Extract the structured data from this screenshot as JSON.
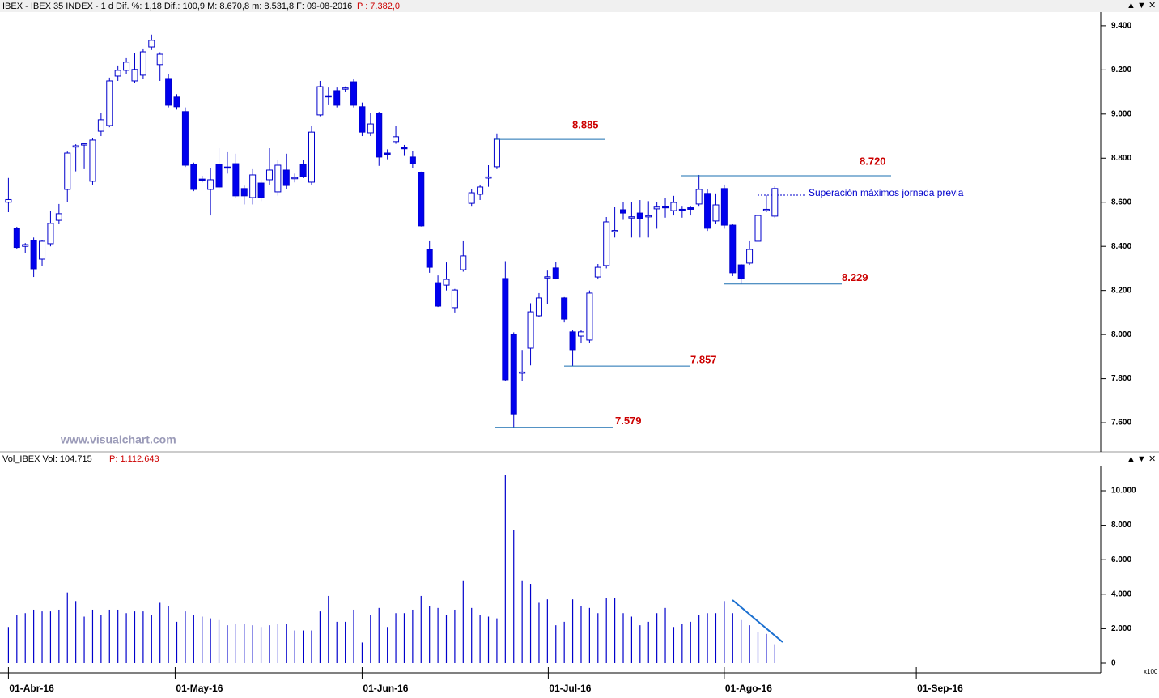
{
  "watermark": "www.visualchart.com",
  "chart_data": [
    {
      "type": "candlestick",
      "title": "IBEX - IBEX 35 INDEX - 1 d Dif. %: 1,18 Dif.: 100,9 M: 8.670,8 m: 8.531,8 F: 09-08-2016",
      "subtitle": "P : 7.382,0",
      "x": [
        0,
        1,
        2,
        3,
        4,
        5,
        6,
        7,
        8,
        9,
        10,
        11,
        12,
        13,
        14,
        15,
        16,
        17,
        18,
        19,
        20,
        21,
        22,
        23,
        24,
        25,
        26,
        27,
        28,
        29,
        30,
        31,
        32,
        33,
        34,
        35,
        36,
        37,
        38,
        39,
        40,
        41,
        42,
        43,
        44,
        45,
        46,
        47,
        48,
        49,
        50,
        51,
        52,
        53,
        54,
        55,
        56,
        57,
        58,
        59,
        60,
        61,
        62,
        63,
        64,
        65,
        66,
        67,
        68,
        69,
        70,
        71,
        72,
        73,
        74,
        75,
        76,
        77,
        78,
        79,
        80,
        81,
        82,
        83,
        84,
        85,
        86,
        87,
        88,
        89,
        90,
        91
      ],
      "open": [
        8600,
        8480,
        8400,
        8427,
        8342,
        8412,
        8518,
        8658,
        8850,
        8860,
        8695,
        8922,
        8948,
        9172,
        9198,
        9150,
        9176,
        9304,
        9224,
        9161,
        9077,
        9011,
        8772,
        8705,
        8658,
        8772,
        8760,
        8775,
        8662,
        8621,
        8687,
        8702,
        8647,
        8746,
        8710,
        8772,
        8691,
        8996,
        9083,
        9106,
        9114,
        9146,
        9033,
        8915,
        9003,
        8823,
        8875,
        8848,
        8805,
        8735,
        8386,
        8235,
        8224,
        8122,
        8294,
        8595,
        8636,
        8710,
        8761,
        8254,
        8000,
        7825,
        7938,
        8085,
        8258,
        8302,
        8166,
        8012,
        7993,
        7975,
        8261,
        8313,
        8468,
        8566,
        8530,
        8551,
        8536,
        8570,
        8580,
        8562,
        8568,
        8575,
        8592,
        8640,
        8515,
        8662,
        8496,
        8316,
        8324,
        8423,
        8563,
        8537
      ],
      "high": [
        8710,
        8489,
        8415,
        8440,
        8430,
        8560,
        8592,
        8830,
        8863,
        8870,
        8890,
        9004,
        9165,
        9220,
        9253,
        9276,
        9297,
        9360,
        9280,
        9180,
        9090,
        9030,
        8780,
        8720,
        8757,
        8845,
        8827,
        8820,
        8675,
        8750,
        8700,
        8845,
        8790,
        8820,
        8730,
        8790,
        8945,
        9150,
        9120,
        9120,
        9125,
        9160,
        9052,
        9003,
        9010,
        8840,
        8947,
        8860,
        8833,
        8739,
        8423,
        8268,
        8327,
        8207,
        8423,
        8660,
        8680,
        8768,
        8912,
        8333,
        8010,
        7930,
        8142,
        8188,
        8290,
        8331,
        8170,
        8020,
        8020,
        8200,
        8320,
        8533,
        8577,
        8599,
        8599,
        8610,
        8605,
        8599,
        8620,
        8629,
        8580,
        8580,
        8724,
        8658,
        8640,
        8680,
        8500,
        8320,
        8423,
        8555,
        8632,
        8672
      ],
      "low": [
        8555,
        8386,
        8370,
        8261,
        8310,
        8400,
        8500,
        8599,
        8740,
        8750,
        8680,
        8900,
        8940,
        9150,
        9180,
        9140,
        9160,
        9290,
        9150,
        9030,
        9020,
        8760,
        8650,
        8690,
        8540,
        8660,
        8730,
        8620,
        8590,
        8590,
        8605,
        8680,
        8630,
        8660,
        8690,
        8710,
        8680,
        8990,
        9040,
        9030,
        9100,
        9030,
        8900,
        8900,
        8765,
        8795,
        8865,
        8810,
        8755,
        8490,
        8280,
        8125,
        8200,
        8100,
        8285,
        8580,
        8610,
        8670,
        8750,
        7790,
        7579,
        7790,
        7860,
        8080,
        8140,
        8250,
        8055,
        7857,
        7960,
        7960,
        8250,
        8300,
        8440,
        8520,
        8440,
        8440,
        8440,
        8480,
        8530,
        8540,
        8530,
        8540,
        8580,
        8470,
        8500,
        8480,
        8265,
        8229,
        8316,
        8410,
        8555,
        8530
      ],
      "close": [
        8612,
        8395,
        8408,
        8298,
        8423,
        8504,
        8548,
        8823,
        8856,
        8865,
        8882,
        8974,
        9150,
        9198,
        9235,
        9202,
        9282,
        9334,
        9271,
        9040,
        9033,
        8768,
        8658,
        8700,
        8702,
        8669,
        8755,
        8629,
        8629,
        8724,
        8621,
        8746,
        8768,
        8676,
        8712,
        8717,
        8918,
        9124,
        9079,
        9040,
        9118,
        9040,
        8918,
        8955,
        8805,
        8820,
        8897,
        8845,
        8775,
        8493,
        8305,
        8129,
        8250,
        8202,
        8357,
        8643,
        8669,
        8715,
        8886,
        7795,
        7640,
        7830,
        8103,
        8166,
        8262,
        8254,
        8070,
        7931,
        8012,
        8188,
        8305,
        8511,
        8472,
        8551,
        8534,
        8526,
        8539,
        8578,
        8577,
        8599,
        8565,
        8568,
        8658,
        8482,
        8588,
        8496,
        8280,
        8254,
        8386,
        8540,
        8568,
        8662
      ],
      "up_color": "#ffffff",
      "down_color": "#0000ee",
      "color": "#0000cc",
      "xlim": [
        -1,
        129.7
      ],
      "xticks": [
        {
          "value": 0,
          "label": "01-Abr-16"
        },
        {
          "value": 19.8,
          "label": "01-May-16"
        },
        {
          "value": 42,
          "label": "01-Jun-16"
        },
        {
          "value": 64.1,
          "label": "01-Jul-16"
        },
        {
          "value": 85,
          "label": "01-Ago-16"
        },
        {
          "value": 107.8,
          "label": "01-Sep-16"
        }
      ],
      "ylim": [
        7468,
        9462
      ],
      "yticks": [
        {
          "value": 7600,
          "label": "7.600"
        },
        {
          "value": 7800,
          "label": "7.800"
        },
        {
          "value": 8000,
          "label": "8.000"
        },
        {
          "value": 8200,
          "label": "8.200"
        },
        {
          "value": 8400,
          "label": "8.400"
        },
        {
          "value": 8600,
          "label": "8.600"
        },
        {
          "value": 8800,
          "label": "8.800"
        },
        {
          "value": 9000,
          "label": "9.000"
        },
        {
          "value": 9200,
          "label": "9.200"
        },
        {
          "value": 9400,
          "label": "9.400"
        }
      ],
      "annotations": [
        {
          "value": 8885,
          "label": "8.885"
        },
        {
          "value": 8720,
          "label": "8.720"
        },
        {
          "value": 8229,
          "label": "8.229"
        },
        {
          "value": 7857,
          "label": "7.857"
        },
        {
          "value": 7579,
          "label": "7.579"
        }
      ],
      "note": "Superación máximos jornada previa"
    },
    {
      "type": "bar",
      "title": "Vol_IBEX Vol: 104.715",
      "subtitle": "P: 1.112.643",
      "y_label": "x100",
      "color": "#0000cc",
      "x": [
        0,
        1,
        2,
        3,
        4,
        5,
        6,
        7,
        8,
        9,
        10,
        11,
        12,
        13,
        14,
        15,
        16,
        17,
        18,
        19,
        20,
        21,
        22,
        23,
        24,
        25,
        26,
        27,
        28,
        29,
        30,
        31,
        32,
        33,
        34,
        35,
        36,
        37,
        38,
        39,
        40,
        41,
        42,
        43,
        44,
        45,
        46,
        47,
        48,
        49,
        50,
        51,
        52,
        53,
        54,
        55,
        56,
        57,
        58,
        59,
        60,
        61,
        62,
        63,
        64,
        65,
        66,
        67,
        68,
        69,
        70,
        71,
        72,
        73,
        74,
        75,
        76,
        77,
        78,
        79,
        80,
        81,
        82,
        83,
        84,
        85,
        86,
        87,
        88,
        89,
        90,
        91
      ],
      "values": [
        2100,
        2800,
        2900,
        3100,
        3000,
        3000,
        3100,
        4100,
        3600,
        2700,
        3100,
        2800,
        3100,
        3100,
        2900,
        3000,
        3000,
        2800,
        3500,
        3300,
        2400,
        3000,
        2800,
        2700,
        2600,
        2500,
        2200,
        2300,
        2300,
        2200,
        2100,
        2200,
        2300,
        2300,
        1900,
        1900,
        1900,
        3000,
        3900,
        2400,
        2400,
        3100,
        1200,
        2800,
        3200,
        2100,
        2900,
        2900,
        3100,
        3900,
        3300,
        3200,
        2800,
        3100,
        4800,
        3200,
        2800,
        2700,
        2600,
        10900,
        7700,
        4800,
        4600,
        3500,
        3700,
        2200,
        2400,
        3700,
        3300,
        3200,
        2900,
        3800,
        3800,
        2900,
        2700,
        2200,
        2400,
        2900,
        3200,
        2100,
        2300,
        2400,
        2800,
        2900,
        2900,
        3600,
        2900,
        2500,
        2200,
        1800,
        1700,
        1100
      ],
      "xlim": [
        -1,
        129.7
      ],
      "ylim": [
        -563,
        11408
      ],
      "yticks": [
        0,
        {
          "value": 2000,
          "label": "2.000"
        },
        {
          "value": 4000,
          "label": "4.000"
        },
        {
          "value": 6000,
          "label": "6.000"
        },
        {
          "value": 8000,
          "label": "8.000"
        },
        {
          "value": 10000,
          "label": "10.000"
        }
      ]
    }
  ]
}
